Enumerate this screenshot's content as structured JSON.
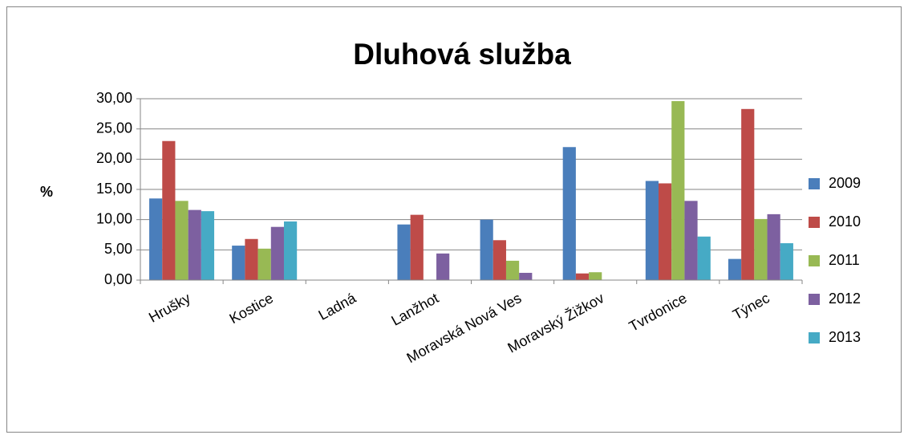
{
  "chart_data": {
    "type": "bar",
    "title": "Dluhová služba",
    "y_label": "%",
    "categories": [
      "Hrušky",
      "Kostice",
      "Ladná",
      "Lanžhot",
      "Moravská Nová Ves",
      "Moravský Žižkov",
      "Tvrdonice",
      "Týnec"
    ],
    "series": [
      {
        "name": "2009",
        "color": "#4a7ebb",
        "values": [
          13.5,
          5.7,
          0,
          9.2,
          10.0,
          22.0,
          16.4,
          3.5
        ]
      },
      {
        "name": "2010",
        "color": "#be4b48",
        "values": [
          23.0,
          6.8,
          0,
          10.8,
          6.6,
          1.1,
          16.0,
          28.3
        ]
      },
      {
        "name": "2011",
        "color": "#98b954",
        "values": [
          13.1,
          5.2,
          0,
          0,
          3.2,
          1.3,
          29.6,
          10.1
        ]
      },
      {
        "name": "2012",
        "color": "#7d60a0",
        "values": [
          11.6,
          8.8,
          0,
          4.4,
          1.2,
          0,
          13.1,
          10.9
        ]
      },
      {
        "name": "2013",
        "color": "#46aac5",
        "values": [
          11.4,
          9.7,
          0,
          0,
          0,
          0,
          7.2,
          6.1
        ]
      }
    ],
    "ylim": [
      0,
      30
    ],
    "yticks": [
      {
        "value": 0,
        "label": "0,00"
      },
      {
        "value": 5,
        "label": "5,00"
      },
      {
        "value": 10,
        "label": "10,00"
      },
      {
        "value": 15,
        "label": "15,00"
      },
      {
        "value": 20,
        "label": "20,00"
      },
      {
        "value": 25,
        "label": "25,00"
      },
      {
        "value": 30,
        "label": "30,00"
      }
    ],
    "grid": true,
    "legend": "right"
  }
}
